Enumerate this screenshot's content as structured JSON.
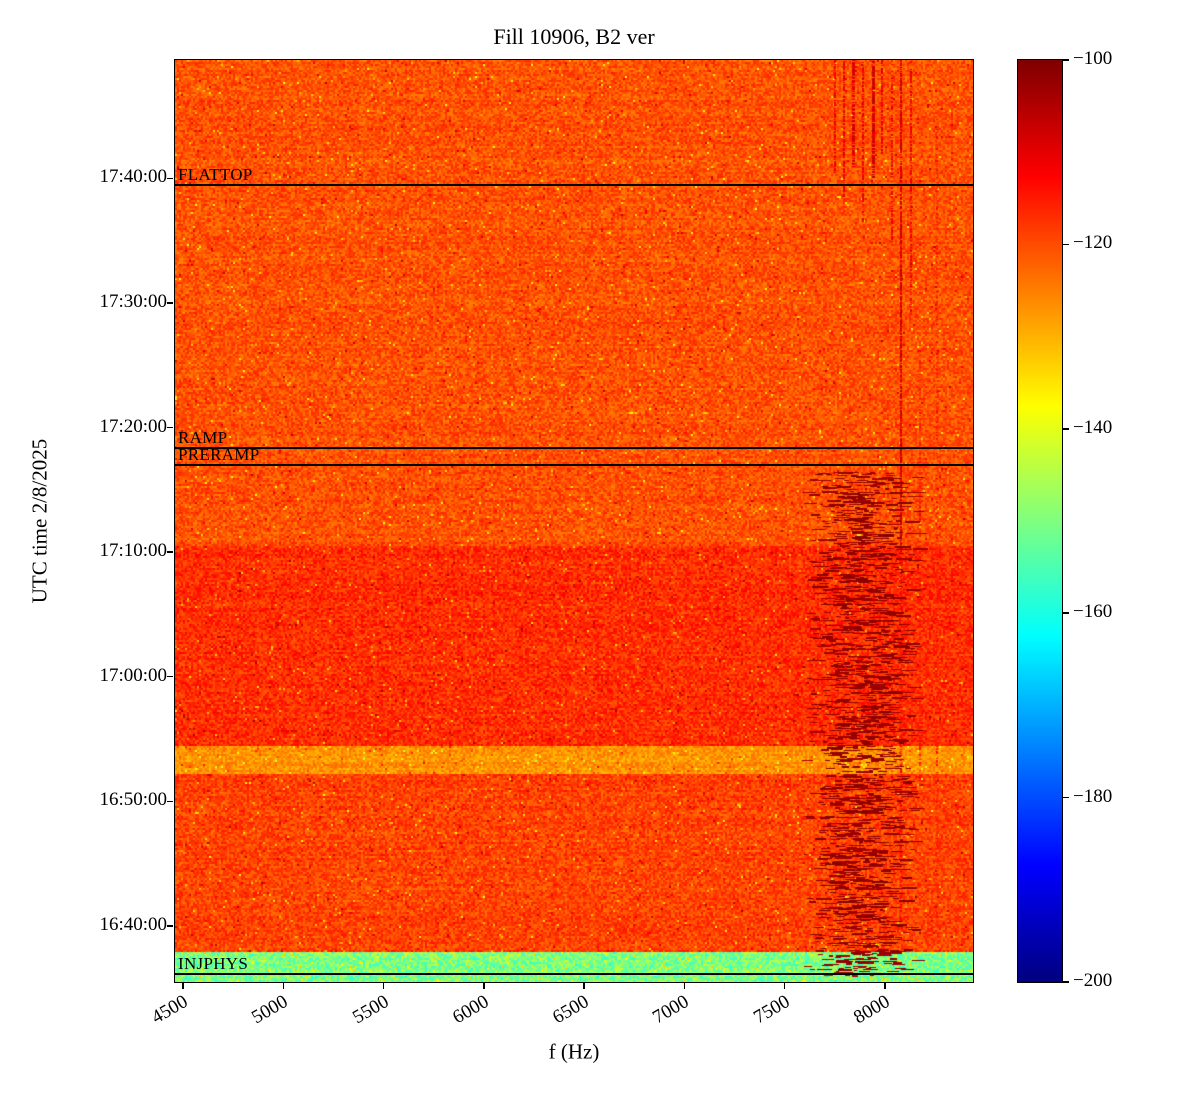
{
  "chart_data": {
    "type": "heatmap",
    "subtype": "spectrogram",
    "title": "Fill 10906, B2 ver",
    "xlabel": "f (Hz)",
    "ylabel": "UTC time 2/8/2025",
    "xlim": [
      4460,
      8440
    ],
    "x_ticks": [
      4500,
      5000,
      5500,
      6000,
      6500,
      7000,
      7500,
      8000
    ],
    "x_tick_labels": [
      "4500",
      "5000",
      "5500",
      "6000",
      "6500",
      "7000",
      "7500",
      "8000"
    ],
    "ylim": [
      "16:35:30",
      "17:49:30"
    ],
    "y_ticks": [
      "16:40:00",
      "16:50:00",
      "17:00:00",
      "17:10:00",
      "17:20:00",
      "17:30:00",
      "17:40:00"
    ],
    "colorbar": {
      "min": -200,
      "max": -100,
      "colormap": "jet",
      "tick_values": [
        -100,
        -120,
        -140,
        -160,
        -180,
        -200
      ],
      "tick_labels": [
        "−100",
        "−120",
        "−140",
        "−160",
        "−180",
        "−200"
      ]
    },
    "annotations": [
      {
        "label": "FLATTOP",
        "time": "17:39:30"
      },
      {
        "label": "RAMP",
        "time": "17:18:20"
      },
      {
        "label": "PRERAMP",
        "time": "17:17:00"
      },
      {
        "label": "INJPHYS",
        "time": "16:36:10"
      }
    ],
    "time_bands": [
      {
        "from": "16:35:30",
        "to": "16:37:55",
        "base": -150,
        "spread": 7,
        "green": true
      },
      {
        "from": "16:37:55",
        "to": "16:52:10",
        "base": -119,
        "spread": 4.5
      },
      {
        "from": "16:52:10",
        "to": "16:54:30",
        "base": -127,
        "spread": 4
      },
      {
        "from": "16:54:30",
        "to": "17:10:30",
        "base": -117,
        "spread": 4.5
      },
      {
        "from": "17:10:30",
        "to": "17:49:30",
        "base": -120.5,
        "spread": 4.5
      }
    ],
    "speckle_band": {
      "f_min": 7580,
      "f_max": 8160,
      "t_min": "16:36:00",
      "t_max": "17:16:30",
      "value_min": -104,
      "value_max": -100,
      "count": 1600
    },
    "vertical_streaks": [
      {
        "f": 7745,
        "t_min": "17:40:30",
        "t_max": "17:49:30",
        "value": -111,
        "density": 0.65,
        "width": 2
      },
      {
        "f": 7790,
        "t_min": "17:38:30",
        "t_max": "17:49:30",
        "value": -110,
        "density": 0.7,
        "width": 2
      },
      {
        "f": 7838,
        "t_min": "17:41:00",
        "t_max": "17:49:30",
        "value": -109,
        "density": 0.75,
        "width": 3
      },
      {
        "f": 7886,
        "t_min": "17:36:30",
        "t_max": "17:49:30",
        "value": -111,
        "density": 0.6,
        "width": 2
      },
      {
        "f": 7934,
        "t_min": "17:40:00",
        "t_max": "17:49:30",
        "value": -108,
        "density": 0.8,
        "width": 3
      },
      {
        "f": 7982,
        "t_min": "17:42:00",
        "t_max": "17:49:30",
        "value": -110,
        "density": 0.7,
        "width": 2
      },
      {
        "f": 8030,
        "t_min": "17:35:00",
        "t_max": "17:49:30",
        "value": -111,
        "density": 0.55,
        "width": 2
      },
      {
        "f": 8078,
        "t_min": "16:40:00",
        "t_max": "17:49:30",
        "value": -113,
        "density": 0.5,
        "width": 2
      },
      {
        "f": 8078,
        "t_min": "17:10:00",
        "t_max": "17:49:30",
        "value": -108,
        "density": 0.7,
        "width": 2
      },
      {
        "f": 8126,
        "t_min": "17:29:00",
        "t_max": "17:49:30",
        "value": -111,
        "density": 0.6,
        "width": 2
      },
      {
        "f": 8170,
        "t_min": "16:50:00",
        "t_max": "17:27:00",
        "value": -114,
        "density": 0.45,
        "width": 2
      },
      {
        "f": 8255,
        "t_min": "16:40:00",
        "t_max": "17:45:00",
        "value": -115,
        "density": 0.4,
        "width": 2
      }
    ],
    "background": {
      "base_value": -120.5,
      "noise_spread": 4.5
    }
  }
}
